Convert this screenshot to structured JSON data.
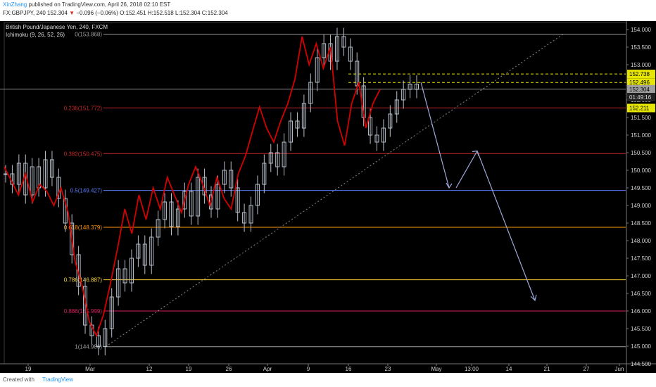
{
  "header": {
    "author": "XinZhang",
    "published": "published on TradingView.com, April 26, 2018 02:10 EST",
    "symbol": "FX:GBPJPY, 240",
    "last": "152.304",
    "arrow": "▼",
    "change": "−0.096 (−0.06%)",
    "open": "O:152.451",
    "high": "H:152.518",
    "low": "L:152.304",
    "close": "C:152.304"
  },
  "chart_title": "British Pound/Japanese Yen, 240, FXCM",
  "indicator_title": "Ichimoku (9, 26, 52, 26)",
  "footer": {
    "created_with": "Created with",
    "brand": "TradingView"
  },
  "colors": {
    "background": "#000000",
    "candles": "#b8c0cc",
    "ichimoku_line": "#d50000",
    "arrow": "#9fa8da",
    "trendline": "#888888"
  },
  "chart_data": {
    "type": "line",
    "y_ticks": [
      "154.000",
      "153.500",
      "153.000",
      "152.500",
      "152.000",
      "151.500",
      "151.000",
      "150.500",
      "150.000",
      "149.500",
      "149.000",
      "148.500",
      "148.000",
      "147.500",
      "147.000",
      "146.500",
      "146.000",
      "145.500",
      "145.000",
      "144.500"
    ],
    "ylim": [
      144.5,
      154.2
    ],
    "x_ticks": [
      "19",
      "Mar",
      "12",
      "19",
      "26",
      "Apr",
      "9",
      "16",
      "23",
      "May",
      "13:00",
      "14",
      "21",
      "27",
      "Jun"
    ],
    "fib_levels": [
      {
        "label": "0(153.868)",
        "value": 153.868,
        "color": "#9e9e9e"
      },
      {
        "label": "0.236(151.772)",
        "value": 151.772,
        "color": "#c62828"
      },
      {
        "label": "0.382(150.475)",
        "value": 150.475,
        "color": "#c62828"
      },
      {
        "label": "0.5(149.427)",
        "value": 149.427,
        "color": "#5c7cfa"
      },
      {
        "label": "0.618(148.379)",
        "value": 148.379,
        "color": "#ff9800"
      },
      {
        "label": "0.786(146.887)",
        "value": 146.887,
        "color": "#fdd835"
      },
      {
        "label": "0.886(145.999)",
        "value": 145.999,
        "color": "#d81b60"
      },
      {
        "label": "1(144.986)",
        "value": 144.986,
        "color": "#9e9e9e"
      }
    ],
    "price_labels": [
      {
        "label": "152.738",
        "value": 152.738,
        "style": "yellow"
      },
      {
        "label": "152.496",
        "value": 152.496,
        "style": "yellow"
      },
      {
        "label": "152.304",
        "value": 152.304,
        "style": "grey"
      },
      {
        "label": "01:49:16",
        "value": 152.08,
        "style": "dark"
      },
      {
        "label": "152.211",
        "value": 151.77,
        "style": "yellow"
      }
    ],
    "dashed_levels": [
      152.738,
      152.496
    ],
    "grey_level": 152.304,
    "price_path": [
      149.9,
      149.6,
      150.2,
      149.3,
      150.1,
      149.5,
      150.3,
      149.8,
      149.2,
      148.5,
      147.6,
      146.7,
      145.6,
      145.3,
      144.99,
      145.5,
      146.4,
      147.2,
      146.8,
      147.5,
      147.9,
      147.3,
      148.1,
      148.6,
      149.1,
      148.4,
      148.9,
      149.4,
      148.7,
      149.8,
      149.3,
      148.9,
      149.6,
      150.0,
      149.5,
      148.8,
      148.5,
      149.0,
      149.6,
      150.2,
      150.5,
      150.1,
      150.8,
      151.4,
      151.2,
      151.9,
      152.5,
      153.2,
      153.6,
      153.1,
      153.8,
      153.5,
      153.1,
      152.4,
      151.5,
      151.0,
      150.8,
      151.2,
      151.6,
      152.0,
      152.3,
      152.45,
      152.3
    ],
    "ichimoku_path": [
      150.1,
      149.7,
      149.3,
      149.9,
      149.1,
      149.6,
      149.4,
      149.0,
      149.5,
      148.8,
      147.4,
      146.7,
      145.7,
      145.3,
      145.9,
      146.8,
      147.8,
      148.9,
      148.2,
      149.3,
      148.6,
      149.5,
      148.9,
      149.8,
      149.3,
      148.8,
      149.6,
      150.1,
      149.6,
      149.0,
      149.8,
      149.2,
      148.9,
      149.9,
      150.4,
      151.1,
      151.8,
      151.2,
      150.8,
      151.4,
      151.9,
      152.6,
      153.8,
      153.0,
      153.6,
      152.9,
      153.5,
      151.4,
      150.7,
      151.9,
      152.5,
      151.2,
      151.9,
      152.3
    ]
  }
}
